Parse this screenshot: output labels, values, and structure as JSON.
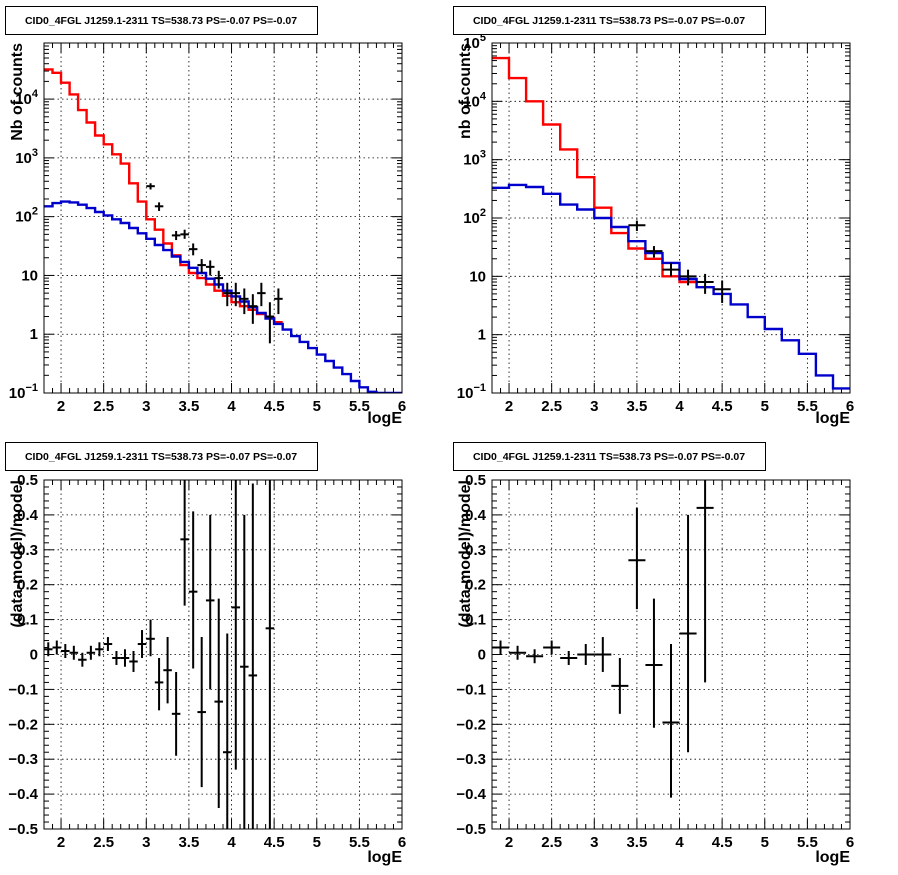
{
  "chart_data": [
    {
      "type": "line",
      "title": "CID0_4FGL J1259.1-2311 TS=538.73 PS=-0.07 PS=-0.07",
      "xlabel": "logE",
      "ylabel": "Nb of counts",
      "yscale": "log",
      "xlim": [
        1.8,
        6.0
      ],
      "ylim": [
        0.1,
        90000
      ],
      "grid": true,
      "x_ticks": [
        "2",
        "2.5",
        "3",
        "3.5",
        "4",
        "4.5",
        "5",
        "5.5",
        "6"
      ],
      "y_ticks": [
        "10^-1",
        "1",
        "10",
        "10^2",
        "10^3",
        "10^4"
      ],
      "histograms": [
        {
          "color": "#ff0000",
          "edges": [
            1.8,
            1.9,
            2.0,
            2.1,
            2.2,
            2.3,
            2.4,
            2.5,
            2.6,
            2.7,
            2.8,
            2.9,
            3.0,
            3.1,
            3.2,
            3.3,
            3.4,
            3.5,
            3.6,
            3.7,
            3.8,
            3.9,
            4.0,
            4.1,
            4.2,
            4.3,
            4.4,
            4.5,
            4.6
          ],
          "values": [
            32000,
            28000,
            19000,
            12000,
            6500,
            4000,
            2400,
            1700,
            1150,
            800,
            370,
            180,
            90,
            60,
            35,
            22,
            15,
            11,
            9,
            7,
            5.5,
            4.5,
            3.5,
            3.0,
            2.6,
            2.2,
            1.9,
            1.6
          ]
        },
        {
          "color": "#0000cc",
          "edges": [
            1.8,
            1.9,
            2.0,
            2.1,
            2.2,
            2.3,
            2.4,
            2.5,
            2.6,
            2.7,
            2.8,
            2.9,
            3.0,
            3.1,
            3.2,
            3.3,
            3.4,
            3.5,
            3.6,
            3.7,
            3.8,
            3.9,
            4.0,
            4.1,
            4.2,
            4.3,
            4.4,
            4.5,
            4.6,
            4.7,
            4.8,
            4.9,
            5.0,
            5.1,
            5.2,
            5.3,
            5.4,
            5.5,
            5.6,
            5.7,
            5.8,
            5.9,
            6.0
          ],
          "values": [
            150,
            170,
            180,
            175,
            160,
            140,
            120,
            105,
            90,
            78,
            64,
            52,
            42,
            33,
            27,
            21,
            17,
            13.5,
            11,
            8.8,
            7.0,
            5.5,
            4.4,
            3.6,
            2.9,
            2.3,
            1.85,
            1.5,
            1.2,
            0.93,
            0.74,
            0.58,
            0.45,
            0.35,
            0.27,
            0.21,
            0.16,
            0.125,
            0.105,
            0.1,
            0.1,
            0.1
          ]
        }
      ],
      "points": [
        {
          "x": 3.05,
          "y": 330,
          "xerr": 0.05,
          "ylo": 290,
          "yhi": 370
        },
        {
          "x": 3.15,
          "y": 150,
          "xerr": 0.05,
          "ylo": 125,
          "yhi": 175
        },
        {
          "x": 3.35,
          "y": 48,
          "xerr": 0.05,
          "ylo": 40,
          "yhi": 57
        },
        {
          "x": 3.45,
          "y": 50,
          "xerr": 0.05,
          "ylo": 42,
          "yhi": 60
        },
        {
          "x": 3.55,
          "y": 28,
          "xerr": 0.05,
          "ylo": 22,
          "yhi": 35
        },
        {
          "x": 3.65,
          "y": 15,
          "xerr": 0.05,
          "ylo": 11,
          "yhi": 19
        },
        {
          "x": 3.75,
          "y": 14,
          "xerr": 0.05,
          "ylo": 10,
          "yhi": 18
        },
        {
          "x": 3.85,
          "y": 9,
          "xerr": 0.05,
          "ylo": 6,
          "yhi": 12
        },
        {
          "x": 3.95,
          "y": 5,
          "xerr": 0.05,
          "ylo": 3,
          "yhi": 7.5
        },
        {
          "x": 4.05,
          "y": 5,
          "xerr": 0.05,
          "ylo": 3,
          "yhi": 7.5
        },
        {
          "x": 4.15,
          "y": 4,
          "xerr": 0.05,
          "ylo": 2.2,
          "yhi": 6
        },
        {
          "x": 4.25,
          "y": 3,
          "xerr": 0.05,
          "ylo": 1.5,
          "yhi": 4.8
        },
        {
          "x": 4.35,
          "y": 5,
          "xerr": 0.05,
          "ylo": 3,
          "yhi": 7.5
        },
        {
          "x": 4.45,
          "y": 2,
          "xerr": 0.05,
          "ylo": 0.7,
          "yhi": 3.5
        },
        {
          "x": 4.55,
          "y": 4,
          "xerr": 0.05,
          "ylo": 2.2,
          "yhi": 6
        }
      ]
    },
    {
      "type": "line",
      "title": "CID0_4FGL J1259.1-2311 TS=538.73 PS=-0.07 PS=-0.07",
      "xlabel": "logE",
      "ylabel": "nb of counts",
      "yscale": "log",
      "xlim": [
        1.8,
        6.0
      ],
      "ylim": [
        0.1,
        100000
      ],
      "grid": true,
      "x_ticks": [
        "2",
        "2.5",
        "3",
        "3.5",
        "4",
        "4.5",
        "5",
        "5.5",
        "6"
      ],
      "y_ticks": [
        "10^-1",
        "1",
        "10",
        "10^2",
        "10^3",
        "10^4",
        "10^5"
      ],
      "histograms": [
        {
          "color": "#ff0000",
          "edges": [
            1.8,
            2.0,
            2.2,
            2.4,
            2.6,
            2.8,
            3.0,
            3.2,
            3.4,
            3.6,
            3.8,
            4.0,
            4.2
          ],
          "values": [
            55000,
            25000,
            10000,
            4000,
            1500,
            500,
            150,
            55,
            30,
            20,
            10,
            8
          ]
        },
        {
          "color": "#0000cc",
          "edges": [
            1.8,
            2.0,
            2.2,
            2.4,
            2.6,
            2.8,
            3.0,
            3.2,
            3.4,
            3.6,
            3.8,
            4.0,
            4.2,
            4.4,
            4.6,
            4.8,
            5.0,
            5.2,
            5.4,
            5.6,
            5.8,
            6.0
          ],
          "values": [
            330,
            370,
            340,
            260,
            170,
            140,
            100,
            70,
            40,
            25,
            17,
            9,
            6.5,
            5,
            3.3,
            2.0,
            1.25,
            0.8,
            0.47,
            0.2,
            0.12
          ]
        }
      ],
      "points": [
        {
          "x": 3.5,
          "y": 75,
          "xerr": 0.1,
          "ylo": 60,
          "yhi": 90
        },
        {
          "x": 3.7,
          "y": 27,
          "xerr": 0.1,
          "ylo": 21,
          "yhi": 33
        },
        {
          "x": 3.9,
          "y": 13,
          "xerr": 0.1,
          "ylo": 10,
          "yhi": 17
        },
        {
          "x": 4.1,
          "y": 10,
          "xerr": 0.1,
          "ylo": 7,
          "yhi": 13
        },
        {
          "x": 4.3,
          "y": 8,
          "xerr": 0.1,
          "ylo": 5,
          "yhi": 11
        },
        {
          "x": 4.5,
          "y": 6,
          "xerr": 0.1,
          "ylo": 3.5,
          "yhi": 8.5
        }
      ]
    },
    {
      "type": "scatter",
      "title": "CID0_4FGL J1259.1-2311 TS=538.73 PS=-0.07 PS=-0.07",
      "xlabel": "logE",
      "ylabel": "(data-model)/model",
      "xlim": [
        1.8,
        6.0
      ],
      "ylim": [
        -0.5,
        0.5
      ],
      "grid": true,
      "x_ticks": [
        "2",
        "2.5",
        "3",
        "3.5",
        "4",
        "4.5",
        "5",
        "5.5",
        "6"
      ],
      "y_ticks": [
        "−0.5",
        "−0.4",
        "−0.3",
        "−0.2",
        "−0.1",
        "0",
        "0.1",
        "0.2",
        "0.3",
        "0.4",
        "0.5"
      ],
      "points": [
        {
          "x": 1.85,
          "y": 0.015,
          "xerr": 0.05,
          "ylo": -0.005,
          "yhi": 0.035
        },
        {
          "x": 1.95,
          "y": 0.02,
          "xerr": 0.05,
          "ylo": 0.0,
          "yhi": 0.04
        },
        {
          "x": 2.05,
          "y": 0.01,
          "xerr": 0.05,
          "ylo": -0.01,
          "yhi": 0.03
        },
        {
          "x": 2.15,
          "y": 0.005,
          "xerr": 0.05,
          "ylo": -0.015,
          "yhi": 0.025
        },
        {
          "x": 2.25,
          "y": -0.015,
          "xerr": 0.05,
          "ylo": -0.035,
          "yhi": 0.005
        },
        {
          "x": 2.35,
          "y": 0.005,
          "xerr": 0.05,
          "ylo": -0.015,
          "yhi": 0.025
        },
        {
          "x": 2.45,
          "y": 0.015,
          "xerr": 0.05,
          "ylo": -0.005,
          "yhi": 0.035
        },
        {
          "x": 2.55,
          "y": 0.03,
          "xerr": 0.05,
          "ylo": 0.01,
          "yhi": 0.05
        },
        {
          "x": 2.65,
          "y": -0.01,
          "xerr": 0.05,
          "ylo": -0.03,
          "yhi": 0.01
        },
        {
          "x": 2.75,
          "y": -0.01,
          "xerr": 0.05,
          "ylo": -0.035,
          "yhi": 0.015
        },
        {
          "x": 2.85,
          "y": -0.02,
          "xerr": 0.05,
          "ylo": -0.05,
          "yhi": 0.01
        },
        {
          "x": 2.95,
          "y": 0.03,
          "xerr": 0.05,
          "ylo": -0.01,
          "yhi": 0.07
        },
        {
          "x": 3.05,
          "y": 0.045,
          "xerr": 0.05,
          "ylo": -0.005,
          "yhi": 0.1
        },
        {
          "x": 3.15,
          "y": -0.08,
          "xerr": 0.05,
          "ylo": -0.16,
          "yhi": -0.01
        },
        {
          "x": 3.25,
          "y": -0.045,
          "xerr": 0.05,
          "ylo": -0.14,
          "yhi": 0.05
        },
        {
          "x": 3.35,
          "y": -0.17,
          "xerr": 0.05,
          "ylo": -0.29,
          "yhi": -0.05
        },
        {
          "x": 3.45,
          "y": 0.33,
          "xerr": 0.05,
          "ylo": 0.14,
          "yhi": 0.5
        },
        {
          "x": 3.55,
          "y": 0.18,
          "xerr": 0.05,
          "ylo": -0.04,
          "yhi": 0.41
        },
        {
          "x": 3.65,
          "y": -0.165,
          "xerr": 0.05,
          "ylo": -0.38,
          "yhi": 0.05
        },
        {
          "x": 3.75,
          "y": 0.155,
          "xerr": 0.05,
          "ylo": -0.1,
          "yhi": 0.4
        },
        {
          "x": 3.85,
          "y": -0.135,
          "xerr": 0.05,
          "ylo": -0.44,
          "yhi": 0.16
        },
        {
          "x": 3.95,
          "y": -0.28,
          "xerr": 0.05,
          "ylo": -0.5,
          "yhi": 0.06
        },
        {
          "x": 4.05,
          "y": 0.135,
          "xerr": 0.05,
          "ylo": -0.33,
          "yhi": 0.5
        },
        {
          "x": 4.15,
          "y": -0.035,
          "xerr": 0.05,
          "ylo": -0.5,
          "yhi": 0.4
        },
        {
          "x": 4.25,
          "y": -0.06,
          "xerr": 0.05,
          "ylo": -0.5,
          "yhi": 0.49
        },
        {
          "x": 4.45,
          "y": 0.075,
          "xerr": 0.05,
          "ylo": -0.5,
          "yhi": 0.5
        }
      ]
    },
    {
      "type": "scatter",
      "title": "CID0_4FGL J1259.1-2311 TS=538.73 PS=-0.07 PS=-0.07",
      "xlabel": "logE",
      "ylabel": "(data-model)/model",
      "xlim": [
        1.8,
        6.0
      ],
      "ylim": [
        -0.5,
        0.5
      ],
      "grid": true,
      "x_ticks": [
        "2",
        "2.5",
        "3",
        "3.5",
        "4",
        "4.5",
        "5",
        "5.5",
        "6"
      ],
      "y_ticks": [
        "−0.5",
        "−0.4",
        "−0.3",
        "−0.2",
        "−0.1",
        "0",
        "0.1",
        "0.2",
        "0.3",
        "0.4",
        "0.5"
      ],
      "points": [
        {
          "x": 1.9,
          "y": 0.02,
          "xerr": 0.1,
          "ylo": 0.0,
          "yhi": 0.04
        },
        {
          "x": 2.1,
          "y": 0.005,
          "xerr": 0.1,
          "ylo": -0.015,
          "yhi": 0.025
        },
        {
          "x": 2.3,
          "y": -0.005,
          "xerr": 0.1,
          "ylo": -0.025,
          "yhi": 0.015
        },
        {
          "x": 2.5,
          "y": 0.02,
          "xerr": 0.1,
          "ylo": 0.0,
          "yhi": 0.04
        },
        {
          "x": 2.7,
          "y": -0.01,
          "xerr": 0.1,
          "ylo": -0.03,
          "yhi": 0.01
        },
        {
          "x": 2.9,
          "y": 0.0,
          "xerr": 0.1,
          "ylo": -0.03,
          "yhi": 0.03
        },
        {
          "x": 3.1,
          "y": 0.0,
          "xerr": 0.1,
          "ylo": -0.05,
          "yhi": 0.05
        },
        {
          "x": 3.3,
          "y": -0.09,
          "xerr": 0.1,
          "ylo": -0.17,
          "yhi": -0.01
        },
        {
          "x": 3.5,
          "y": 0.27,
          "xerr": 0.1,
          "ylo": 0.13,
          "yhi": 0.42
        },
        {
          "x": 3.7,
          "y": -0.03,
          "xerr": 0.1,
          "ylo": -0.21,
          "yhi": 0.16
        },
        {
          "x": 3.9,
          "y": -0.195,
          "xerr": 0.1,
          "ylo": -0.41,
          "yhi": 0.03
        },
        {
          "x": 4.1,
          "y": 0.06,
          "xerr": 0.1,
          "ylo": -0.28,
          "yhi": 0.4
        },
        {
          "x": 4.3,
          "y": 0.42,
          "xerr": 0.1,
          "ylo": -0.08,
          "yhi": 0.5
        }
      ]
    }
  ]
}
